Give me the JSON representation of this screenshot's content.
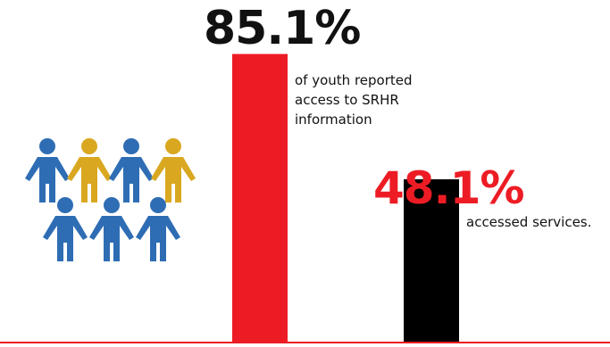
{
  "chart_data": {
    "type": "bar",
    "title": "",
    "xlabel": "",
    "ylabel": "",
    "ylim": [
      0,
      100
    ],
    "grid": false,
    "legend": "none",
    "categories": [
      "of youth reported\naccess to SRHR\ninformation",
      "accessed services."
    ],
    "values": [
      85.1,
      48.1
    ],
    "value_labels": [
      "85.1%",
      "48.1%"
    ],
    "colors": [
      "#ed1c24",
      "#000000"
    ],
    "label_colors": [
      "#111111",
      "#ed1c24"
    ]
  },
  "illustration": {
    "icon": "people-group-icon",
    "figures": [
      {
        "color": "#2e6db4"
      },
      {
        "color": "#d9a820"
      },
      {
        "color": "#2e6db4"
      },
      {
        "color": "#d9a820"
      },
      {
        "color": "#2e6db4"
      },
      {
        "color": "#2e6db4"
      },
      {
        "color": "#2e6db4"
      }
    ]
  },
  "colors": {
    "baseline": "#ed1c24"
  }
}
